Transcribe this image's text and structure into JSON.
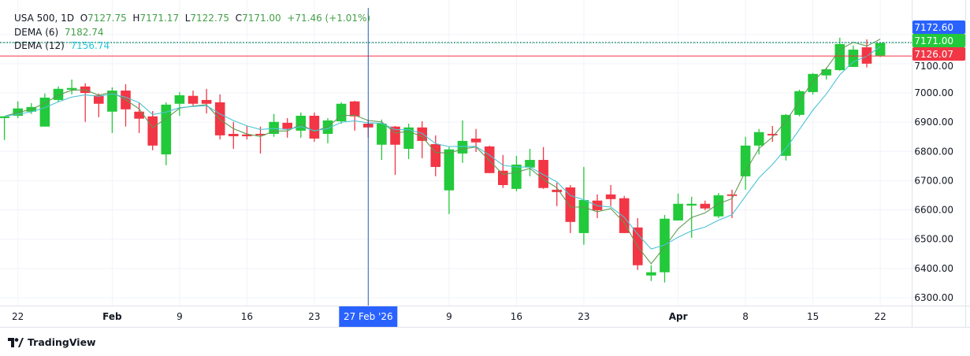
{
  "legend": {
    "symbol": "USA 500, 1D",
    "open_label": "O",
    "open": "7127.75",
    "high_label": "H",
    "high": "7171.17",
    "low_label": "L",
    "low": "7122.75",
    "close_label": "C",
    "close": "7171.00",
    "change": "+71.46 (+1.01%)",
    "dema6_label": "DEMA (6)",
    "dema6_value": "7182.74",
    "dema12_label": "DEMA (12)",
    "dema12_value": "7156.74"
  },
  "price_axis": {
    "ticks": [
      "7100.00",
      "7000.00",
      "6900.00",
      "6800.00",
      "6700.00",
      "6600.00",
      "6500.00",
      "6400.00",
      "6300.00"
    ],
    "crosshair_price": "7172.60",
    "last_price": "7171.00",
    "dema_price": "7126.07"
  },
  "time_axis": {
    "ticks": [
      {
        "label": "22",
        "index": 1
      },
      {
        "label": "Feb",
        "index": 8,
        "bold": true
      },
      {
        "label": "9",
        "index": 13
      },
      {
        "label": "16",
        "index": 18
      },
      {
        "label": "23",
        "index": 23
      },
      {
        "label": "9",
        "index": 33
      },
      {
        "label": "16",
        "index": 38
      },
      {
        "label": "23",
        "index": 43
      },
      {
        "label": "Apr",
        "index": 50,
        "bold": true
      },
      {
        "label": "8",
        "index": 55
      },
      {
        "label": "15",
        "index": 60
      },
      {
        "label": "22",
        "index": 65
      }
    ],
    "crosshair_label": "27 Feb '26",
    "crosshair_index": 27
  },
  "branding": {
    "name": "TradingView"
  },
  "colors": {
    "up": "#22c93a",
    "down": "#f23645",
    "dema6": "#5f9a52",
    "dema12": "#4cc3d5",
    "crosshair": "#2962ff",
    "last": "#22c93a",
    "dema_line": "#f23645"
  },
  "chart_data": {
    "type": "candlestick",
    "title": "USA 500, 1D",
    "ylim": [
      6260,
      7250
    ],
    "series_ohlc": [
      [
        6914,
        6920,
        6839,
        6920
      ],
      [
        6922,
        6971,
        6914,
        6947
      ],
      [
        6936,
        6965,
        6928,
        6952
      ],
      [
        6885,
        6998,
        6885,
        6984
      ],
      [
        6976,
        7022,
        6968,
        7014
      ],
      [
        7011,
        7046,
        6995,
        7017
      ],
      [
        7022,
        7033,
        6901,
        7000
      ],
      [
        6992,
        6998,
        6917,
        6963
      ],
      [
        6936,
        7019,
        6863,
        7008
      ],
      [
        7008,
        7030,
        6885,
        6944
      ],
      [
        6936,
        6965,
        6863,
        6912
      ],
      [
        6920,
        6938,
        6804,
        6820
      ],
      [
        6790,
        6968,
        6753,
        6960
      ],
      [
        6963,
        7003,
        6922,
        6992
      ],
      [
        6990,
        7008,
        6957,
        6963
      ],
      [
        6976,
        7014,
        6930,
        6963
      ],
      [
        6968,
        6995,
        6841,
        6855
      ],
      [
        6860,
        6901,
        6809,
        6852
      ],
      [
        6858,
        6887,
        6841,
        6852
      ],
      [
        6860,
        6885,
        6793,
        6855
      ],
      [
        6860,
        6928,
        6850,
        6901
      ],
      [
        6898,
        6914,
        6847,
        6877
      ],
      [
        6871,
        6933,
        6847,
        6922
      ],
      [
        6922,
        6933,
        6833,
        6844
      ],
      [
        6860,
        6914,
        6828,
        6906
      ],
      [
        6903,
        6968,
        6895,
        6963
      ],
      [
        6971,
        6973,
        6871,
        6920
      ],
      [
        6895,
        6909,
        6847,
        6882
      ],
      [
        6823,
        6909,
        6771,
        6895
      ],
      [
        6885,
        6887,
        6720,
        6823
      ],
      [
        6809,
        6895,
        6774,
        6882
      ],
      [
        6882,
        6903,
        6777,
        6836
      ],
      [
        6825,
        6855,
        6715,
        6747
      ],
      [
        6667,
        6815,
        6586,
        6807
      ],
      [
        6793,
        6906,
        6761,
        6836
      ],
      [
        6844,
        6877,
        6798,
        6831
      ],
      [
        6817,
        6820,
        6726,
        6726
      ],
      [
        6734,
        6788,
        6675,
        6685
      ],
      [
        6672,
        6785,
        6664,
        6755
      ],
      [
        6745,
        6809,
        6715,
        6771
      ],
      [
        6771,
        6815,
        6672,
        6675
      ],
      [
        6669,
        6693,
        6613,
        6661
      ],
      [
        6677,
        6685,
        6521,
        6559
      ],
      [
        6521,
        6747,
        6481,
        6634
      ],
      [
        6632,
        6653,
        6572,
        6599
      ],
      [
        6653,
        6685,
        6613,
        6637
      ],
      [
        6640,
        6648,
        6521,
        6521
      ],
      [
        6540,
        6572,
        6395,
        6411
      ],
      [
        6376,
        6411,
        6357,
        6387
      ],
      [
        6387,
        6583,
        6352,
        6570
      ],
      [
        6564,
        6656,
        6564,
        6621
      ],
      [
        6615,
        6645,
        6505,
        6621
      ],
      [
        6621,
        6632,
        6599,
        6605
      ],
      [
        6578,
        6658,
        6572,
        6650
      ],
      [
        6653,
        6669,
        6572,
        6648
      ],
      [
        6715,
        6850,
        6669,
        6820
      ],
      [
        6820,
        6877,
        6790,
        6866
      ],
      [
        6860,
        6887,
        6833,
        6855
      ],
      [
        6785,
        6928,
        6769,
        6925
      ],
      [
        6925,
        7011,
        6920,
        7006
      ],
      [
        7003,
        7068,
        6995,
        7065
      ],
      [
        7060,
        7087,
        7046,
        7081
      ],
      [
        7078,
        7189,
        7076,
        7167
      ],
      [
        7089,
        7162,
        7089,
        7148
      ],
      [
        7156,
        7183,
        7087,
        7100
      ],
      [
        7127.75,
        7171.17,
        7122.75,
        7171.0
      ]
    ],
    "indicators": [
      {
        "name": "DEMA (6)",
        "period": 6
      },
      {
        "name": "DEMA (12)",
        "period": 12
      }
    ]
  }
}
